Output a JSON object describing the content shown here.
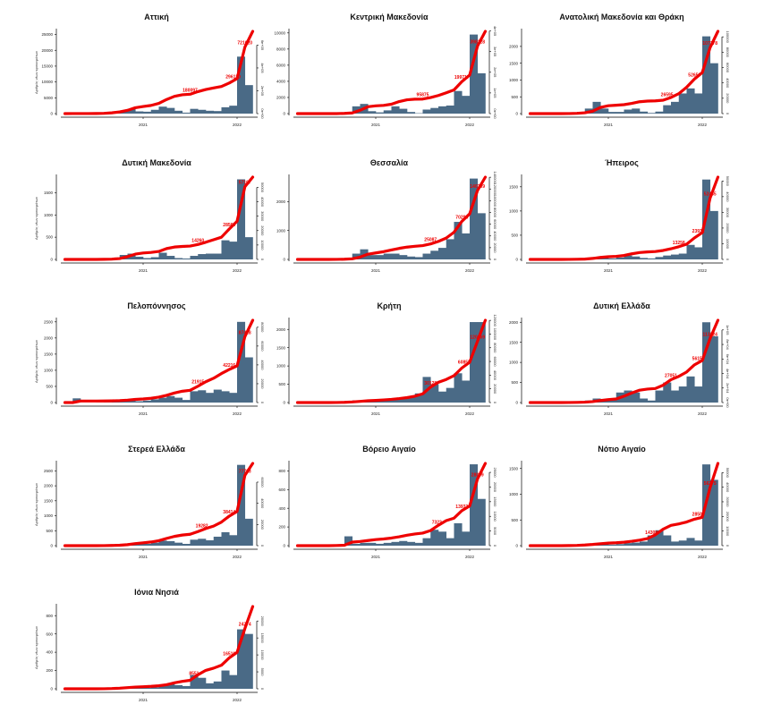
{
  "chart_data": {
    "type": "bar+line",
    "y_left_label": "Αριθμός νέων κρουσμάτων",
    "x_ticks": [
      {
        "label": "2021",
        "month": 10
      },
      {
        "label": "2022",
        "month": 22
      }
    ],
    "x_domain_months_from_mar_2020": [
      0,
      23.5
    ],
    "colors": {
      "bars": "#4a6a86",
      "line": "#ee0000",
      "label": "#ee0000"
    },
    "panels": [
      {
        "title": "Αττική",
        "ymax": 26000,
        "left_ticks": [
          0,
          5000,
          10000,
          15000,
          20000,
          25000
        ],
        "right_ticks": [
          "0e+00",
          "2e+05",
          "4e+05",
          "6e+05"
        ],
        "right_vals": [
          0,
          200000,
          400000,
          600000
        ],
        "final": 721020,
        "labels": [
          {
            "text": "180097",
            "month": 16
          },
          {
            "text": "296130",
            "month": 21.5
          },
          {
            "text": "721020",
            "month": 23
          }
        ],
        "bars": [
          20,
          10,
          5,
          20,
          100,
          300,
          500,
          900,
          1500,
          700,
          600,
          1200,
          2200,
          1800,
          900,
          300,
          1500,
          1200,
          900,
          800,
          2000,
          2500,
          18000,
          9000
        ]
      },
      {
        "title": "Κεντρική Μακεδονία",
        "ymax": 10200,
        "left_ticks": [
          0,
          2000,
          4000,
          6000,
          8000,
          10000
        ],
        "right_ticks": [
          "0e+00",
          "1e+05",
          "2e+05",
          "3e+05",
          "4e+05"
        ],
        "right_vals": [
          0,
          100000,
          200000,
          300000,
          400000
        ],
        "final": 398128,
        "labels": [
          {
            "text": "95875",
            "month": 16
          },
          {
            "text": "199717",
            "month": 21
          },
          {
            "text": "398128",
            "month": 23
          }
        ],
        "bars": [
          0,
          0,
          0,
          0,
          10,
          60,
          150,
          900,
          1200,
          300,
          150,
          400,
          900,
          600,
          200,
          50,
          500,
          700,
          900,
          1000,
          2800,
          2200,
          9800,
          5000
        ]
      },
      {
        "title": "Ανατολική Μακεδονία και Θράκη",
        "ymax": 2450,
        "left_ticks": [
          0,
          500,
          1000,
          1500,
          2000
        ],
        "right_ticks": [
          "0",
          "20000",
          "40000",
          "60000",
          "80000",
          "100000"
        ],
        "right_vals": [
          0,
          20000,
          40000,
          60000,
          80000,
          100000
        ],
        "final": 107178,
        "labels": [
          {
            "text": "26595",
            "month": 17.5
          },
          {
            "text": "52650",
            "month": 21
          },
          {
            "text": "107178",
            "month": 23
          }
        ],
        "bars": [
          0,
          0,
          0,
          0,
          5,
          20,
          50,
          150,
          350,
          150,
          50,
          50,
          120,
          150,
          60,
          20,
          60,
          250,
          350,
          600,
          750,
          600,
          2300,
          1500
        ]
      },
      {
        "title": "Δυτική Μακεδονία",
        "ymax": 1850,
        "left_ticks": [
          0,
          500,
          1000,
          1500
        ],
        "right_ticks": [
          "0",
          "10000",
          "20000",
          "30000",
          "40000",
          "50000"
        ],
        "right_vals": [
          0,
          10000,
          20000,
          30000,
          40000,
          50000
        ],
        "final": 57107,
        "labels": [
          {
            "text": "14260",
            "month": 17
          },
          {
            "text": "28565",
            "month": 21
          },
          {
            "text": "57107",
            "month": 23
          }
        ],
        "bars": [
          0,
          0,
          0,
          0,
          5,
          10,
          30,
          100,
          130,
          60,
          30,
          50,
          150,
          80,
          30,
          20,
          80,
          120,
          130,
          130,
          430,
          400,
          1800,
          500
        ]
      },
      {
        "title": "Θεσσαλία",
        "ymax": 2850,
        "left_ticks": [
          0,
          1000,
          2000
        ],
        "right_ticks": [
          "0",
          "20000",
          "40000",
          "60000",
          "80000",
          "100000",
          "120000",
          "140000"
        ],
        "right_vals": [
          0,
          20000,
          40000,
          60000,
          80000,
          100000,
          120000,
          140000
        ],
        "final": 140209,
        "labels": [
          {
            "text": "25087",
            "month": 17
          },
          {
            "text": "70298",
            "month": 21
          },
          {
            "text": "140209",
            "month": 23
          }
        ],
        "bars": [
          0,
          0,
          0,
          0,
          5,
          20,
          50,
          200,
          350,
          150,
          150,
          200,
          200,
          150,
          100,
          80,
          200,
          300,
          400,
          700,
          1300,
          900,
          2800,
          1600
        ]
      },
      {
        "title": "Ήπειρος",
        "ymax": 1700,
        "left_ticks": [
          0,
          500,
          1000,
          1500
        ],
        "right_ticks": [
          "0",
          "10000",
          "20000",
          "30000",
          "40000",
          "50000"
        ],
        "right_vals": [
          0,
          10000,
          20000,
          30000,
          40000,
          50000
        ],
        "final": 52465,
        "labels": [
          {
            "text": "13258",
            "month": 19
          },
          {
            "text": "23932",
            "month": 21.5
          },
          {
            "text": "52465",
            "month": 23
          }
        ],
        "bars": [
          0,
          0,
          0,
          0,
          2,
          5,
          10,
          30,
          50,
          30,
          20,
          40,
          80,
          60,
          30,
          20,
          50,
          80,
          100,
          120,
          300,
          250,
          1650,
          1000
        ]
      },
      {
        "title": "Πελοπόννησος",
        "ymax": 2550,
        "left_ticks": [
          0,
          500,
          1000,
          1500,
          2000,
          2500
        ],
        "right_ticks": [
          "0",
          "20000",
          "40000",
          "60000",
          "80000"
        ],
        "right_vals": [
          0,
          20000,
          40000,
          60000,
          80000
        ],
        "final": 87428,
        "labels": [
          {
            "text": "21915",
            "month": 17
          },
          {
            "text": "42216",
            "month": 21
          },
          {
            "text": "87428",
            "month": 23
          }
        ],
        "bars": [
          0,
          130,
          0,
          0,
          5,
          10,
          20,
          40,
          60,
          40,
          60,
          100,
          150,
          200,
          150,
          80,
          350,
          380,
          300,
          400,
          350,
          300,
          2500,
          1400
        ]
      },
      {
        "title": "Κρήτη",
        "ymax": 2250,
        "left_ticks": [
          0,
          500,
          1000,
          1500,
          2000
        ],
        "right_ticks": [
          "0",
          "20000",
          "40000",
          "60000",
          "80000",
          "100000",
          "120000"
        ],
        "right_vals": [
          0,
          20000,
          40000,
          60000,
          80000,
          100000,
          120000
        ],
        "final": 120169,
        "labels": [
          {
            "text": "30128",
            "month": 17
          },
          {
            "text": "60858",
            "month": 21.3
          },
          {
            "text": "120169",
            "month": 23
          }
        ],
        "bars": [
          0,
          0,
          0,
          0,
          5,
          20,
          40,
          60,
          60,
          40,
          50,
          60,
          80,
          100,
          150,
          250,
          700,
          500,
          300,
          400,
          800,
          600,
          2200,
          2200
        ]
      },
      {
        "title": "Δυτική Ελλάδα",
        "ymax": 2050,
        "left_ticks": [
          0,
          500,
          1000,
          1500,
          2000
        ],
        "right_ticks": [
          "0e+00",
          "2e+04",
          "4e+04",
          "6e+04",
          "8e+04",
          "1e+05"
        ],
        "right_vals": [
          0,
          20000,
          40000,
          60000,
          80000,
          100000
        ],
        "final": 113324,
        "labels": [
          {
            "text": "27051",
            "month": 18
          },
          {
            "text": "56155",
            "month": 21.5
          },
          {
            "text": "113324",
            "month": 23
          }
        ],
        "bars": [
          0,
          0,
          0,
          0,
          5,
          10,
          20,
          50,
          100,
          80,
          60,
          250,
          300,
          250,
          100,
          50,
          300,
          500,
          300,
          400,
          650,
          400,
          2000,
          1650
        ]
      },
      {
        "title": "Στερεά Ελλάδα",
        "ymax": 2750,
        "left_ticks": [
          0,
          500,
          1000,
          1500,
          2000,
          2500
        ],
        "right_ticks": [
          "0",
          "20000",
          "40000",
          "60000"
        ],
        "right_vals": [
          0,
          20000,
          40000,
          60000
        ],
        "final": 77723,
        "labels": [
          {
            "text": "19282",
            "month": 17.5
          },
          {
            "text": "38414",
            "month": 21
          },
          {
            "text": "77723",
            "month": 23
          }
        ],
        "bars": [
          0,
          0,
          0,
          0,
          5,
          10,
          20,
          40,
          80,
          60,
          60,
          100,
          170,
          150,
          100,
          60,
          200,
          230,
          180,
          300,
          450,
          350,
          2700,
          900
        ]
      },
      {
        "title": "Βόρειο Αιγαίο",
        "ymax": 880,
        "left_ticks": [
          0,
          200,
          400,
          600,
          800
        ],
        "right_ticks": [
          "0",
          "5000",
          "10000",
          "15000",
          "20000",
          "25000"
        ],
        "right_vals": [
          0,
          5000,
          10000,
          15000,
          20000,
          25000
        ],
        "final": 28069,
        "labels": [
          {
            "text": "7322",
            "month": 17.8
          },
          {
            "text": "13933",
            "month": 21
          },
          {
            "text": "28069",
            "month": 23
          }
        ],
        "bars": [
          0,
          0,
          0,
          0,
          5,
          10,
          100,
          20,
          30,
          30,
          20,
          30,
          40,
          50,
          40,
          30,
          80,
          170,
          150,
          80,
          240,
          150,
          870,
          500
        ]
      },
      {
        "title": "Νότιο Αιγαίο",
        "ymax": 1600,
        "left_ticks": [
          0,
          500,
          1000,
          1500
        ],
        "right_ticks": [
          "0",
          "10000",
          "20000",
          "30000",
          "40000",
          "50000"
        ],
        "right_vals": [
          0,
          10000,
          20000,
          30000,
          40000,
          50000
        ],
        "final": 56275,
        "labels": [
          {
            "text": "14308",
            "month": 15.5
          },
          {
            "text": "28505",
            "month": 21.5
          },
          {
            "text": "56275",
            "month": 23
          }
        ],
        "bars": [
          0,
          0,
          0,
          0,
          5,
          10,
          20,
          30,
          40,
          30,
          20,
          30,
          50,
          60,
          80,
          200,
          300,
          200,
          80,
          100,
          150,
          100,
          1580,
          1280
        ]
      },
      {
        "title": "Ιόνια Νησιά",
        "ymax": 900,
        "left_ticks": [
          0,
          200,
          400,
          600,
          800
        ],
        "right_ticks": [
          "0",
          "5000",
          "10000",
          "15000",
          "20000"
        ],
        "right_vals": [
          0,
          5000,
          10000,
          15000,
          20000
        ],
        "final": 24274,
        "labels": [
          {
            "text": "8551",
            "month": 16.5
          },
          {
            "text": "16510",
            "month": 21
          },
          {
            "text": "24274",
            "month": 23
          }
        ],
        "bars": [
          0,
          0,
          0,
          0,
          2,
          5,
          10,
          15,
          15,
          10,
          10,
          15,
          30,
          50,
          40,
          30,
          150,
          120,
          60,
          80,
          200,
          150,
          650,
          600
        ]
      }
    ]
  }
}
